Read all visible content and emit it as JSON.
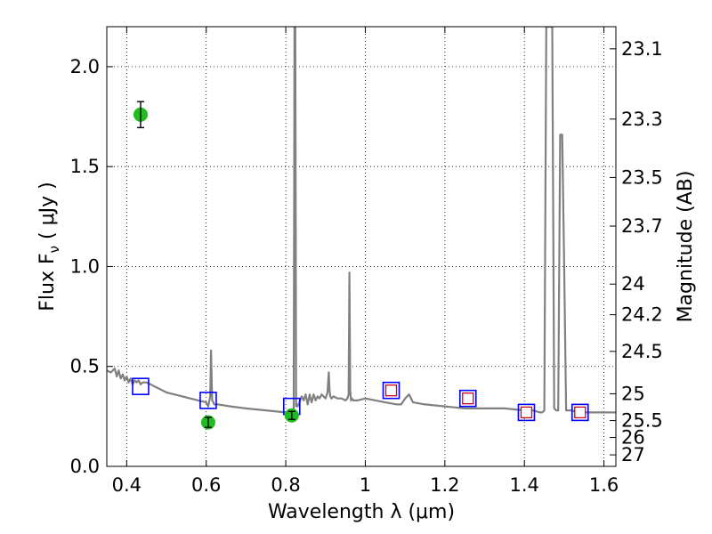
{
  "chart_data": {
    "type": "scatter",
    "xlabel": "Wavelength  λ (μm)",
    "ylabel": "Flux  F",
    "ylabel_sub": "ν",
    "ylabel_unit": "  ( μJy )",
    "y2label": "Magnitude (AB)",
    "xlim": [
      0.35,
      1.63
    ],
    "ylim": [
      0.0,
      2.2
    ],
    "grid": true,
    "grid_style": "dotted",
    "x_ticks": [
      0.4,
      0.6,
      0.8,
      1.0,
      1.2,
      1.4,
      1.6
    ],
    "x_tick_labels": [
      "0.4",
      "0.6",
      "0.8",
      "1",
      "1.2",
      "1.4",
      "1.6"
    ],
    "y_ticks": [
      0.0,
      0.5,
      1.0,
      1.5,
      2.0
    ],
    "y_tick_labels": [
      "0.0",
      "0.5",
      "1.0",
      "1.5",
      "2.0"
    ],
    "mag_ticks": [
      "23.1",
      "23.3",
      "23.5",
      "23.7",
      "24",
      "24.2",
      "24.5",
      "25",
      "25.5",
      "26",
      "27"
    ],
    "series": [
      {
        "kind": "line",
        "color": "#808080",
        "x": [
          0.35,
          0.36,
          0.37,
          0.375,
          0.38,
          0.385,
          0.39,
          0.395,
          0.4,
          0.405,
          0.41,
          0.415,
          0.42,
          0.425,
          0.43,
          0.435,
          0.44,
          0.45,
          0.46,
          0.47,
          0.48,
          0.49,
          0.5,
          0.52,
          0.54,
          0.56,
          0.58,
          0.6,
          0.605,
          0.61,
          0.612,
          0.615,
          0.618,
          0.62,
          0.63,
          0.66,
          0.7,
          0.75,
          0.8,
          0.81,
          0.815,
          0.818,
          0.82,
          0.822,
          0.824,
          0.826,
          0.828,
          0.83,
          0.84,
          0.845,
          0.85,
          0.855,
          0.86,
          0.865,
          0.87,
          0.875,
          0.88,
          0.885,
          0.89,
          0.9,
          0.905,
          0.908,
          0.91,
          0.912,
          0.915,
          0.92,
          0.93,
          0.94,
          0.95,
          0.955,
          0.958,
          0.96,
          0.962,
          0.964,
          0.966,
          0.97,
          0.98,
          1.0,
          1.05,
          1.08,
          1.09,
          1.1,
          1.11,
          1.12,
          1.15,
          1.2,
          1.25,
          1.3,
          1.35,
          1.4,
          1.42,
          1.44,
          1.445,
          1.45,
          1.455,
          1.46,
          1.465,
          1.47,
          1.475,
          1.48,
          1.485,
          1.49,
          1.495,
          1.5,
          1.505,
          1.51,
          1.52,
          1.53,
          1.54,
          1.545,
          1.55,
          1.56,
          1.58,
          1.6,
          1.63
        ],
        "y": [
          0.48,
          0.47,
          0.49,
          0.45,
          0.48,
          0.44,
          0.46,
          0.43,
          0.45,
          0.42,
          0.44,
          0.41,
          0.43,
          0.42,
          0.43,
          0.41,
          0.42,
          0.42,
          0.41,
          0.4,
          0.39,
          0.38,
          0.37,
          0.36,
          0.35,
          0.34,
          0.33,
          0.32,
          0.3,
          0.35,
          0.58,
          0.33,
          0.32,
          0.31,
          0.31,
          0.3,
          0.29,
          0.28,
          0.27,
          0.27,
          0.26,
          0.28,
          0.29,
          2.2,
          2.2,
          0.3,
          0.31,
          0.3,
          0.35,
          0.33,
          0.36,
          0.31,
          0.36,
          0.32,
          0.36,
          0.33,
          0.35,
          0.34,
          0.36,
          0.34,
          0.37,
          0.47,
          0.38,
          0.35,
          0.34,
          0.35,
          0.34,
          0.34,
          0.33,
          0.34,
          0.36,
          0.97,
          0.38,
          0.33,
          0.34,
          0.33,
          0.33,
          0.34,
          0.32,
          0.31,
          0.31,
          0.34,
          0.36,
          0.32,
          0.31,
          0.3,
          0.29,
          0.29,
          0.29,
          0.28,
          0.28,
          0.27,
          0.27,
          0.28,
          2.2,
          2.2,
          2.2,
          2.2,
          0.29,
          0.28,
          0.28,
          1.66,
          1.66,
          1.0,
          0.28,
          0.28,
          0.28,
          0.27,
          0.27,
          0.28,
          0.27,
          0.27,
          0.27,
          0.27,
          0.27
        ]
      },
      {
        "kind": "markers",
        "marker": "square",
        "edge_color": "#0000ff",
        "x": [
          0.435,
          0.605,
          0.815,
          1.065,
          1.258,
          1.405,
          1.54
        ],
        "y": [
          0.4,
          0.33,
          0.3,
          0.38,
          0.34,
          0.27,
          0.27
        ]
      },
      {
        "kind": "markers",
        "marker": "square",
        "edge_color": "#d0001e",
        "face_color": "#ffffff",
        "x": [
          1.065,
          1.258,
          1.405,
          1.54
        ],
        "y": [
          0.38,
          0.34,
          0.27,
          0.27
        ]
      },
      {
        "kind": "errorbar",
        "marker": "circle",
        "color": "#22bb22",
        "x": [
          0.435,
          0.605,
          0.815
        ],
        "y": [
          1.76,
          0.22,
          0.255
        ],
        "yerr": [
          0.065,
          0.025,
          0.02
        ]
      }
    ]
  }
}
